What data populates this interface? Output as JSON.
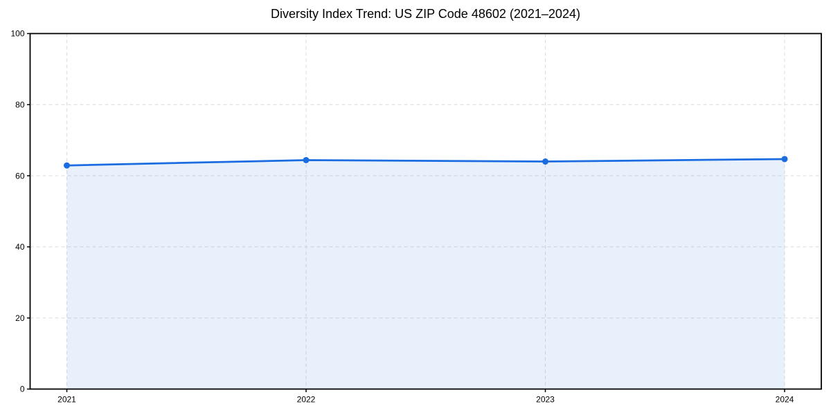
{
  "chart_data": {
    "type": "area",
    "title": "Diversity Index Trend: US ZIP Code 48602 (2021–2024)",
    "x": [
      2021,
      2022,
      2023,
      2024
    ],
    "x_tick_labels": [
      "2021",
      "2022",
      "2023",
      "2024"
    ],
    "series": [
      {
        "name": "Diversity Index",
        "values": [
          62.9,
          64.4,
          64.0,
          64.7
        ]
      }
    ],
    "xlabel": "",
    "ylabel": "",
    "ylim": [
      0,
      100
    ],
    "yticks": [
      0,
      20,
      40,
      60,
      80,
      100
    ],
    "grid": true,
    "grid_style": "dashed",
    "legend": "none",
    "marker": "circle",
    "colors": {
      "line": "#1a6ce0",
      "marker": "#1a6ce0",
      "fill": "rgba(26,108,224,0.10)",
      "grid": "#dcdcdc",
      "axis": "#000000",
      "tick_label": "#000000",
      "background": "#ffffff"
    }
  }
}
